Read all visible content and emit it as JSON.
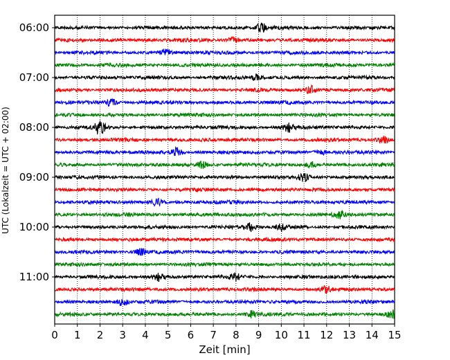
{
  "chart_data": {
    "type": "line",
    "title": "",
    "xlabel": "Zeit  [min]",
    "ylabel": "UTC (Lokalzeit = UTC + 02:00)",
    "x_range": [
      0,
      15
    ],
    "x_ticks": [
      "0",
      "1",
      "2",
      "3",
      "4",
      "5",
      "6",
      "7",
      "8",
      "9",
      "10",
      "11",
      "12",
      "13",
      "14",
      "15"
    ],
    "y_tick_labels": [
      "06:00",
      "07:00",
      "08:00",
      "09:00",
      "10:00",
      "11:00"
    ],
    "trace_interval_minutes": 15,
    "trace_start": "06:00",
    "trace_count": 24,
    "trace_colors": [
      "#000000",
      "#ff0000",
      "#0000ff",
      "#008000"
    ],
    "vertical_grid": "dotted, every minute",
    "events": [
      {
        "trace": 0,
        "time": "06:00",
        "minute": 9.1,
        "amplitude": 2.5
      },
      {
        "trace": 1,
        "time": "06:15",
        "minute": 7.9,
        "amplitude": 1.6
      },
      {
        "trace": 2,
        "time": "06:30",
        "minute": 4.9,
        "amplitude": 1.6
      },
      {
        "trace": 4,
        "time": "07:00",
        "minute": 8.9,
        "amplitude": 1.4
      },
      {
        "trace": 5,
        "time": "07:15",
        "minute": 11.3,
        "amplitude": 2.0
      },
      {
        "trace": 6,
        "time": "07:30",
        "minute": 2.5,
        "amplitude": 1.8
      },
      {
        "trace": 8,
        "time": "08:00",
        "minute": 2.0,
        "amplitude": 4.0
      },
      {
        "trace": 8,
        "time": "08:00",
        "minute": 10.3,
        "amplitude": 2.0
      },
      {
        "trace": 9,
        "time": "08:15",
        "minute": 14.5,
        "amplitude": 1.5
      },
      {
        "trace": 10,
        "time": "08:30",
        "minute": 5.4,
        "amplitude": 2.2
      },
      {
        "trace": 10,
        "time": "08:30",
        "minute": 11.7,
        "amplitude": 1.5
      },
      {
        "trace": 11,
        "time": "08:45",
        "minute": 6.5,
        "amplitude": 1.7
      },
      {
        "trace": 11,
        "time": "08:45",
        "minute": 11.3,
        "amplitude": 1.4
      },
      {
        "trace": 12,
        "time": "09:00",
        "minute": 11.0,
        "amplitude": 1.8
      },
      {
        "trace": 14,
        "time": "09:30",
        "minute": 4.5,
        "amplitude": 1.6
      },
      {
        "trace": 15,
        "time": "09:45",
        "minute": 12.6,
        "amplitude": 1.8
      },
      {
        "trace": 16,
        "time": "10:00",
        "minute": 8.6,
        "amplitude": 2.0
      },
      {
        "trace": 16,
        "time": "10:00",
        "minute": 10.0,
        "amplitude": 1.5
      },
      {
        "trace": 18,
        "time": "10:30",
        "minute": 3.8,
        "amplitude": 1.8
      },
      {
        "trace": 20,
        "time": "11:00",
        "minute": 4.6,
        "amplitude": 1.7
      },
      {
        "trace": 20,
        "time": "11:00",
        "minute": 8.0,
        "amplitude": 1.6
      },
      {
        "trace": 21,
        "time": "11:15",
        "minute": 12.0,
        "amplitude": 1.5
      },
      {
        "trace": 22,
        "time": "11:30",
        "minute": 3.0,
        "amplitude": 1.9
      },
      {
        "trace": 23,
        "time": "11:45",
        "minute": 8.7,
        "amplitude": 1.5
      },
      {
        "trace": 23,
        "time": "11:45",
        "minute": 14.9,
        "amplitude": 2.0
      }
    ]
  }
}
